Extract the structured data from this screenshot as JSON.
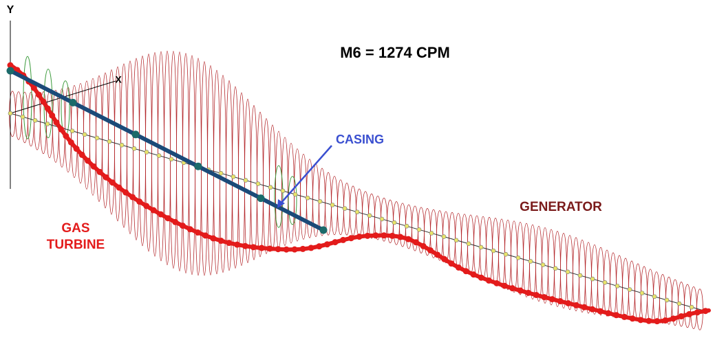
{
  "axes": {
    "y": "Y",
    "x": "X"
  },
  "title": "M6 = 1274 CPM",
  "labels": {
    "casing": "CASING",
    "generator": "GENERATOR",
    "gas_turbine": [
      "GAS",
      "TURBINE"
    ]
  }
}
